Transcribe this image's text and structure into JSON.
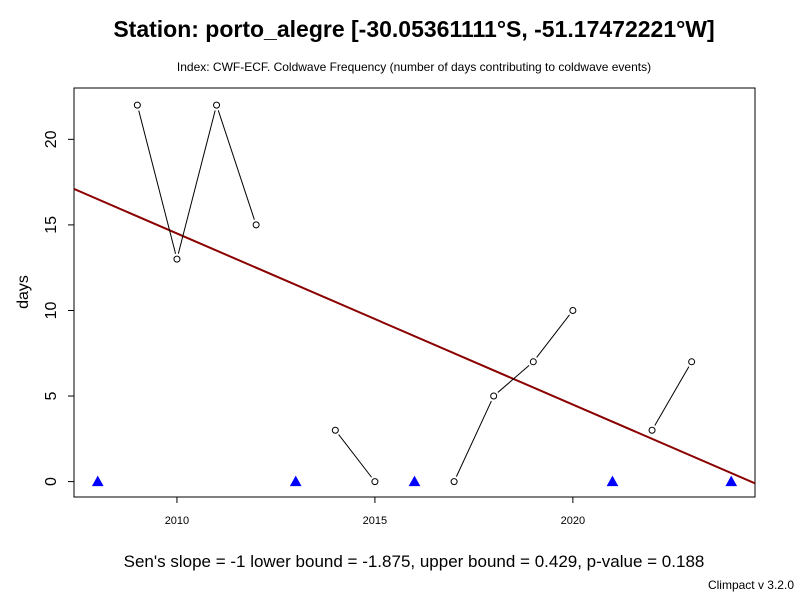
{
  "title": "Station: porto_alegre [-30.05361111°S, -51.17472221°W]",
  "subtitle": "Index: CWF-ECF. Coldwave Frequency (number of days contributing to coldwave events)",
  "footer": "Sen's slope = -1   lower bound = -1.875,   upper bound = 0.429,   p-value = 0.188",
  "version": "Climpact v 3.2.0",
  "colors": {
    "series": "#000000",
    "trend": "#8b0000",
    "missing_marker": "#0000ff"
  },
  "chart_data": {
    "type": "line",
    "ylabel": "days",
    "xlim": [
      2007.4,
      2024.6
    ],
    "ylim": [
      -0.9,
      23.0
    ],
    "x_ticks": [
      2010,
      2015,
      2020
    ],
    "y_ticks": [
      0,
      5,
      10,
      15,
      20
    ],
    "segments": [
      {
        "x": [
          2009,
          2010,
          2011,
          2012
        ],
        "y": [
          22,
          13,
          22,
          15
        ]
      },
      {
        "x": [
          2014,
          2015
        ],
        "y": [
          3,
          0
        ]
      },
      {
        "x": [
          2017,
          2018,
          2019,
          2020
        ],
        "y": [
          0,
          5,
          7,
          10
        ]
      },
      {
        "x": [
          2022,
          2023
        ],
        "y": [
          3,
          7
        ]
      }
    ],
    "missing_years": [
      2008,
      2013,
      2016,
      2021,
      2024
    ],
    "trend_line": {
      "x": [
        2007.4,
        2024.6
      ],
      "y": [
        17.1,
        -0.1
      ]
    }
  }
}
